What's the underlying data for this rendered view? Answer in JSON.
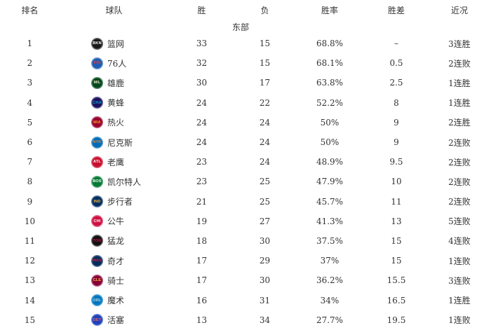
{
  "colors": {
    "background": "#ffffff",
    "text": "#333333"
  },
  "table": {
    "headers": [
      "排名",
      "球队",
      "胜",
      "负",
      "胜率",
      "胜差",
      "近况"
    ],
    "section": "东部",
    "rows": [
      {
        "rank": "1",
        "team": "篮网",
        "abbr": "BKN",
        "wins": "33",
        "losses": "15",
        "pct": "68.8%",
        "gb": "–",
        "streak": "3连胜",
        "logo": {
          "bg": "#1a1a1a",
          "fg": "#ffffff"
        }
      },
      {
        "rank": "2",
        "team": "76人",
        "abbr": "PHI",
        "wins": "32",
        "losses": "15",
        "pct": "68.1%",
        "gb": "0.5",
        "streak": "2连败",
        "logo": {
          "bg": "#1d5cb0",
          "fg": "#e03a3e"
        }
      },
      {
        "rank": "3",
        "team": "雄鹿",
        "abbr": "MIL",
        "wins": "30",
        "losses": "17",
        "pct": "63.8%",
        "gb": "2.5",
        "streak": "1连胜",
        "logo": {
          "bg": "#00471b",
          "fg": "#eee1c6"
        }
      },
      {
        "rank": "4",
        "team": "黄蜂",
        "abbr": "CHA",
        "wins": "24",
        "losses": "22",
        "pct": "52.2%",
        "gb": "8",
        "streak": "1连胜",
        "logo": {
          "bg": "#1d1160",
          "fg": "#00a8c8"
        }
      },
      {
        "rank": "5",
        "team": "热火",
        "abbr": "MIA",
        "wins": "24",
        "losses": "24",
        "pct": "50%",
        "gb": "9",
        "streak": "2连胜",
        "logo": {
          "bg": "#98002e",
          "fg": "#f9a01b"
        }
      },
      {
        "rank": "6",
        "team": "尼克斯",
        "abbr": "NYK",
        "wins": "24",
        "losses": "24",
        "pct": "50%",
        "gb": "9",
        "streak": "2连败",
        "logo": {
          "bg": "#006bb6",
          "fg": "#f58426"
        }
      },
      {
        "rank": "7",
        "team": "老鹰",
        "abbr": "ATL",
        "wins": "23",
        "losses": "24",
        "pct": "48.9%",
        "gb": "9.5",
        "streak": "2连败",
        "logo": {
          "bg": "#c8102e",
          "fg": "#ffffff"
        }
      },
      {
        "rank": "8",
        "team": "凯尔特人",
        "abbr": "BOS",
        "wins": "23",
        "losses": "25",
        "pct": "47.9%",
        "gb": "10",
        "streak": "2连败",
        "logo": {
          "bg": "#007a33",
          "fg": "#ffffff"
        }
      },
      {
        "rank": "9",
        "team": "步行者",
        "abbr": "IND",
        "wins": "21",
        "losses": "25",
        "pct": "45.7%",
        "gb": "11",
        "streak": "2连败",
        "logo": {
          "bg": "#002d62",
          "fg": "#fdbb30"
        }
      },
      {
        "rank": "10",
        "team": "公牛",
        "abbr": "CHI",
        "wins": "19",
        "losses": "27",
        "pct": "41.3%",
        "gb": "13",
        "streak": "5连败",
        "logo": {
          "bg": "#ce1141",
          "fg": "#ffffff"
        }
      },
      {
        "rank": "11",
        "team": "猛龙",
        "abbr": "TOR",
        "wins": "18",
        "losses": "30",
        "pct": "37.5%",
        "gb": "15",
        "streak": "4连败",
        "logo": {
          "bg": "#111111",
          "fg": "#ce1141"
        }
      },
      {
        "rank": "12",
        "team": "奇才",
        "abbr": "WAS",
        "wins": "17",
        "losses": "29",
        "pct": "37%",
        "gb": "15",
        "streak": "1连败",
        "logo": {
          "bg": "#002b5c",
          "fg": "#e31837"
        }
      },
      {
        "rank": "13",
        "team": "骑士",
        "abbr": "CLE",
        "wins": "17",
        "losses": "30",
        "pct": "36.2%",
        "gb": "15.5",
        "streak": "3连败",
        "logo": {
          "bg": "#860038",
          "fg": "#fdbb30"
        }
      },
      {
        "rank": "14",
        "team": "魔术",
        "abbr": "ORL",
        "wins": "16",
        "losses": "31",
        "pct": "34%",
        "gb": "16.5",
        "streak": "1连胜",
        "logo": {
          "bg": "#0077c0",
          "fg": "#c4ced4"
        }
      },
      {
        "rank": "15",
        "team": "活塞",
        "abbr": "DET",
        "wins": "13",
        "losses": "34",
        "pct": "27.7%",
        "gb": "19.5",
        "streak": "1连败",
        "logo": {
          "bg": "#1d42ba",
          "fg": "#ff5a5a"
        }
      }
    ]
  }
}
